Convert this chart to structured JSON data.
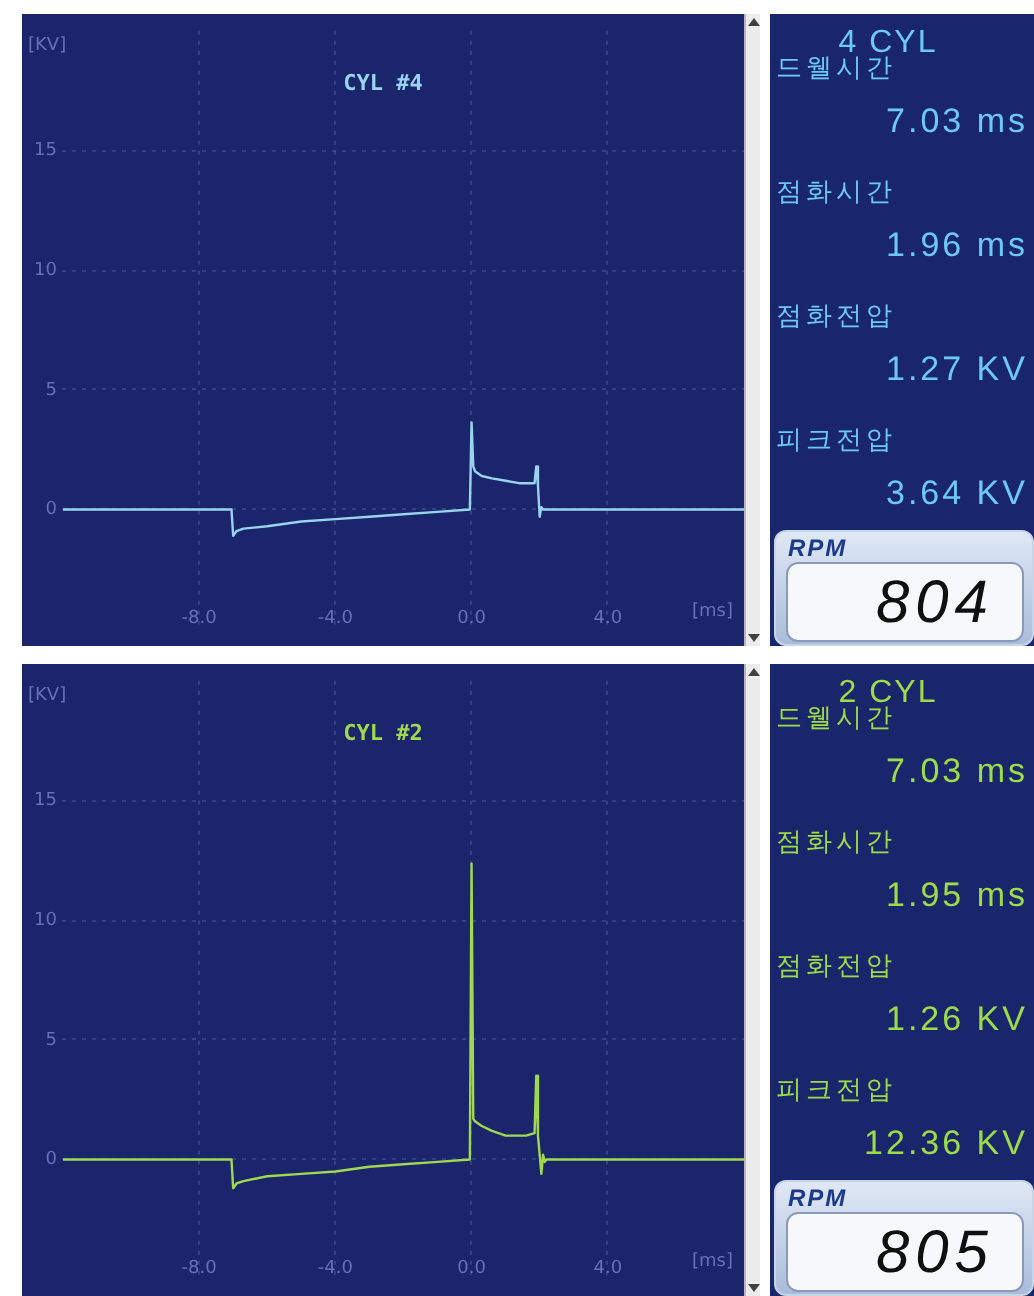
{
  "chart_data": [
    {
      "type": "line",
      "title": "CYL #4",
      "xlabel": "[ms]",
      "ylabel": "[KV]",
      "x": [
        -12,
        -7.05,
        -7.0,
        -6.9,
        -6.7,
        -6,
        -5,
        -4,
        -3,
        -2,
        -1,
        -0.05,
        0,
        0.05,
        0.1,
        0.3,
        0.6,
        1,
        1.4,
        1.85,
        1.9,
        1.95,
        2.0,
        2.05,
        2.1,
        8
      ],
      "values": [
        0,
        0,
        -1.1,
        -0.9,
        -0.8,
        -0.7,
        -0.5,
        -0.4,
        -0.3,
        -0.2,
        -0.1,
        0,
        3.64,
        1.8,
        1.6,
        1.4,
        1.3,
        1.2,
        1.1,
        1.1,
        1.8,
        1.0,
        -0.3,
        0.1,
        0,
        0
      ],
      "color": "#98d4f0",
      "xlim": [
        -12,
        8
      ],
      "ylim": [
        -5,
        20
      ],
      "xticks": [
        {
          "value": -8,
          "label": "-8.0"
        },
        {
          "value": -4,
          "label": "-4.0"
        },
        {
          "value": 0,
          "label": "0.0"
        },
        {
          "value": 4,
          "label": "4.0"
        }
      ],
      "yticks": [
        0,
        5,
        10,
        15
      ],
      "grid": true,
      "marker": "none"
    },
    {
      "type": "other",
      "title": "4 CYL",
      "annotations": [
        "드웰시간",
        "7.03 ms",
        "점화시간",
        "1.96 ms",
        "점화전압",
        "1.27 KV",
        "피크전압",
        "3.64 KV",
        "RPM",
        "804"
      ],
      "color": "#6ccaf2"
    },
    {
      "type": "line",
      "title": "CYL #2",
      "xlabel": "[ms]",
      "ylabel": "[KV]",
      "x": [
        -12,
        -7.05,
        -7.0,
        -6.9,
        -6.7,
        -6,
        -5,
        -4,
        -3,
        -2,
        -1,
        -0.05,
        0,
        0.05,
        0.1,
        0.3,
        0.6,
        1,
        1.3,
        1.6,
        1.85,
        1.9,
        1.95,
        2.05,
        2.1,
        2.15,
        2.2,
        8
      ],
      "values": [
        0,
        0,
        -1.2,
        -1.0,
        -0.9,
        -0.7,
        -0.6,
        -0.5,
        -0.3,
        -0.2,
        -0.1,
        0,
        12.36,
        1.7,
        1.6,
        1.4,
        1.2,
        1.0,
        1.0,
        1.0,
        1.1,
        3.5,
        1.0,
        -0.6,
        0.2,
        -0.1,
        0,
        0
      ],
      "color": "#a0d850",
      "xlim": [
        -12,
        8
      ],
      "ylim": [
        -5,
        20
      ],
      "xticks": [
        {
          "value": -8,
          "label": "-8.0"
        },
        {
          "value": -4,
          "label": "-4.0"
        },
        {
          "value": 0,
          "label": "0.0"
        },
        {
          "value": 4,
          "label": "4.0"
        }
      ],
      "yticks": [
        0,
        5,
        10,
        15
      ],
      "grid": true,
      "marker": "none"
    },
    {
      "type": "other",
      "title": "2 CYL",
      "annotations": [
        "드웰시간",
        "7.03 ms",
        "점화시간",
        "1.95 ms",
        "점화전압",
        "1.26 KV",
        "피크전압",
        "12.36 KV",
        "RPM",
        "805"
      ],
      "color": "#9cdc48"
    }
  ]
}
